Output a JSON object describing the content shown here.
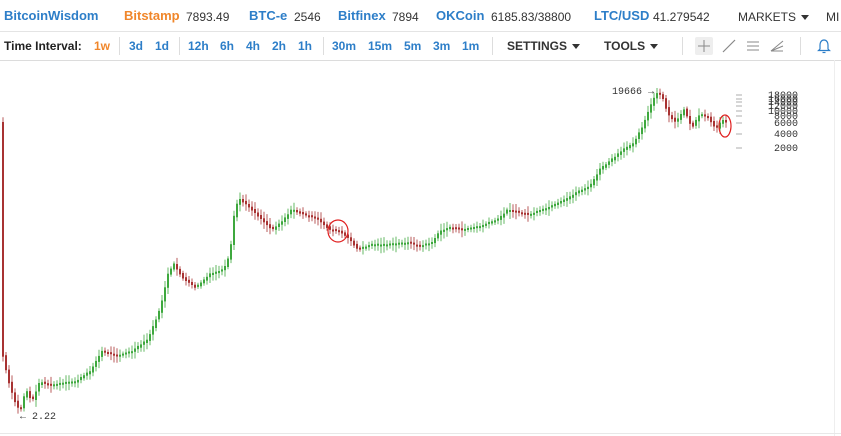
{
  "header": {
    "brand": "BitcoinWisdom",
    "tickers": [
      {
        "name": "Bitstamp",
        "price": "7893.49"
      },
      {
        "name": "BTC-e",
        "price": "2546"
      },
      {
        "name": "Bitfinex",
        "price": "7894"
      },
      {
        "name": "OKCoin",
        "price": "6185.83/38800"
      },
      {
        "name": "LTC/USD",
        "price": "41.279542"
      }
    ],
    "markets_label": "MARKETS",
    "more_label": "MI"
  },
  "toolbar": {
    "time_interval_label": "Time Interval:",
    "intervals": [
      "1w",
      "3d",
      "1d",
      "12h",
      "6h",
      "4h",
      "2h",
      "1h",
      "30m",
      "15m",
      "5m",
      "3m",
      "1m"
    ],
    "selected_interval": "1w",
    "settings_label": "SETTINGS",
    "tools_label": "TOOLS",
    "tool_icons": [
      "crosshair-icon",
      "line-draw-icon",
      "horizontal-lines-icon",
      "fan-icon",
      "alert-bell-icon"
    ]
  },
  "colors": {
    "brand": "#2d7ec8",
    "selected": "#f0862a",
    "up": "#3ea83e",
    "down": "#a83232",
    "marker": "#e02020"
  },
  "chart_data": {
    "type": "candlestick",
    "scale": "log",
    "price_axis_labels": [
      "18000",
      "16000",
      "14000",
      "12000",
      "10000",
      "8000",
      "6000",
      "4000",
      "2000"
    ],
    "annotations": [
      {
        "text": "19666",
        "kind": "max"
      },
      {
        "text": "2.22",
        "kind": "min"
      }
    ],
    "circles": [
      "mid-chart highlight",
      "latest price highlight"
    ]
  }
}
